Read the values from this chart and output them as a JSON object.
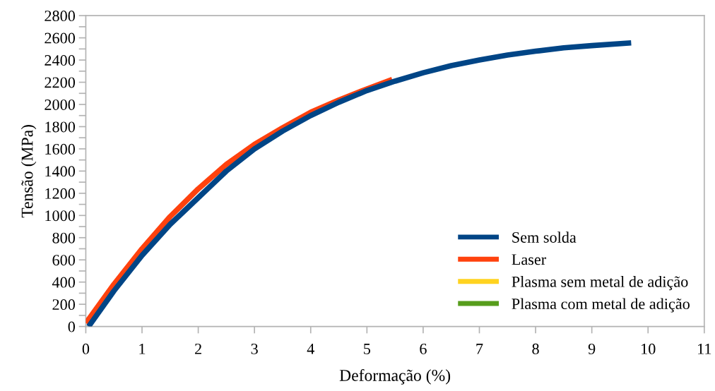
{
  "chart_data": {
    "type": "line",
    "xlabel": "Deformação (%)",
    "ylabel": "Tensão (MPa)",
    "xlim": [
      0,
      11
    ],
    "xticks": [
      0,
      1,
      2,
      3,
      4,
      5,
      6,
      7,
      8,
      9,
      10,
      11
    ],
    "ylim": [
      0,
      2800
    ],
    "yticks": [
      0,
      {
        "value": 100,
        "label": null
      },
      200,
      {
        "value": 300,
        "label": null
      },
      400,
      {
        "value": 500,
        "label": null
      },
      600,
      {
        "value": 700,
        "label": null
      },
      800,
      {
        "value": 900,
        "label": null
      },
      1000,
      {
        "value": 1100,
        "label": null
      },
      1200,
      {
        "value": 1300,
        "label": null
      },
      1400,
      {
        "value": 1500,
        "label": null
      },
      1600,
      {
        "value": 1700,
        "label": null
      },
      1800,
      {
        "value": 1900,
        "label": null
      },
      2000,
      {
        "value": 2100,
        "label": null
      },
      2200,
      {
        "value": 2300,
        "label": null
      },
      2400,
      {
        "value": 2500,
        "label": null
      },
      2600,
      {
        "value": 2700,
        "label": null
      },
      2800
    ],
    "grid": false,
    "legend": "bottom right",
    "marker": "none",
    "line_style": "solid",
    "series": [
      {
        "name": "Sem solda",
        "color": "#004586",
        "x": [
          0.05,
          0.5,
          1,
          1.5,
          2,
          2.5,
          3,
          3.5,
          4,
          4.5,
          5,
          5.5,
          6,
          6.5,
          7,
          7.5,
          8,
          8.5,
          9,
          9.7
        ],
        "values": [
          0,
          320,
          640,
          920,
          1160,
          1400,
          1600,
          1760,
          1900,
          2020,
          2125,
          2210,
          2285,
          2350,
          2400,
          2445,
          2480,
          2510,
          2530,
          2555
        ]
      },
      {
        "name": "Laser",
        "color": "#ff420e",
        "x": [
          0,
          0.5,
          1,
          1.5,
          2,
          2.5,
          3,
          3.5,
          4,
          4.5,
          5,
          5.45
        ],
        "values": [
          30,
          380,
          700,
          990,
          1240,
          1460,
          1640,
          1790,
          1930,
          2040,
          2140,
          2225
        ]
      },
      {
        "name": "Plasma sem metal de adição",
        "color": "#ffd320"
      },
      {
        "name": "Plasma com metal de adição",
        "color": "#579d1c"
      }
    ]
  }
}
